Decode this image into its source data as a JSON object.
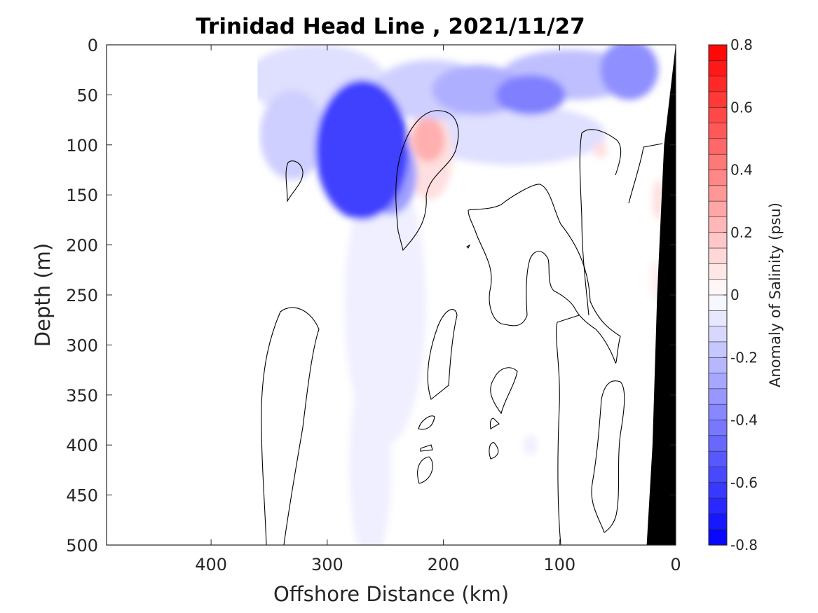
{
  "chart_data": {
    "type": "heatmap",
    "subtype": "filled-contour-section",
    "title": "Trinidad Head Line , 2021/11/27",
    "xlabel": "Offshore Distance (km)",
    "ylabel": "Depth (m)",
    "xlim": [
      490,
      0
    ],
    "ylim": [
      500,
      0
    ],
    "x_reversed": true,
    "y_reversed": true,
    "xticks": [
      400,
      300,
      200,
      100,
      0
    ],
    "xtick_labels": [
      "400",
      "300",
      "200",
      "100",
      "0"
    ],
    "yticks": [
      0,
      50,
      100,
      150,
      200,
      250,
      300,
      350,
      400,
      450,
      500
    ],
    "ytick_labels": [
      "0",
      "50",
      "100",
      "150",
      "200",
      "250",
      "300",
      "350",
      "400",
      "450",
      "500"
    ],
    "colorbar": {
      "label": "Anomaly of Salinity (psu)",
      "range": [
        -0.8,
        0.8
      ],
      "levels_step": 0.05,
      "ticks": [
        0.8,
        0.6,
        0.4,
        0.2,
        0,
        -0.2,
        -0.4,
        -0.6,
        -0.8
      ],
      "tick_labels": [
        "0.8",
        "0.6",
        "0.4",
        "0.2",
        "0",
        "-0.2",
        "-0.4",
        "-0.6",
        "-0.8"
      ],
      "low_color": "#0000ff",
      "mid_color": "#ffffff",
      "high_color": "#ff0000"
    },
    "data_extent_x": [
      360,
      0
    ],
    "bathymetry_color": "#000000",
    "bathymetry": [
      [
        0,
        0
      ],
      [
        10,
        100
      ],
      [
        16,
        250
      ],
      [
        20,
        400
      ],
      [
        25,
        500
      ],
      [
        0,
        500
      ]
    ],
    "features": [
      {
        "x": 270,
        "depth": 105,
        "rx": 40,
        "ry": 70,
        "value": -0.6
      },
      {
        "x": 245,
        "depth": 130,
        "rx": 22,
        "ry": 40,
        "value": -0.3
      },
      {
        "x": 250,
        "depth": 260,
        "rx": 35,
        "ry": 140,
        "value": -0.05
      },
      {
        "x": 263,
        "depth": 420,
        "rx": 18,
        "ry": 100,
        "value": -0.05
      },
      {
        "x": 330,
        "depth": 90,
        "rx": 28,
        "ry": 45,
        "value": -0.15
      },
      {
        "x": 125,
        "depth": 50,
        "rx": 30,
        "ry": 20,
        "value": -0.4
      },
      {
        "x": 170,
        "depth": 45,
        "rx": 40,
        "ry": 25,
        "value": -0.25
      },
      {
        "x": 40,
        "depth": 25,
        "rx": 25,
        "ry": 30,
        "value": -0.35
      },
      {
        "x": 90,
        "depth": 30,
        "rx": 60,
        "ry": 25,
        "value": -0.2
      },
      {
        "x": 140,
        "depth": 90,
        "rx": 80,
        "ry": 30,
        "value": -0.1
      },
      {
        "x": 210,
        "depth": 45,
        "rx": 50,
        "ry": 30,
        "value": -0.15
      },
      {
        "x": 310,
        "depth": 35,
        "rx": 60,
        "ry": 35,
        "value": -0.1
      },
      {
        "x": 213,
        "depth": 95,
        "rx": 14,
        "ry": 22,
        "value": 0.25
      },
      {
        "x": 212,
        "depth": 110,
        "rx": 20,
        "ry": 45,
        "value": 0.1
      },
      {
        "x": 65,
        "depth": 105,
        "rx": 6,
        "ry": 8,
        "value": 0.1
      },
      {
        "x": 15,
        "depth": 155,
        "rx": 5,
        "ry": 20,
        "value": 0.1
      },
      {
        "x": 17,
        "depth": 235,
        "rx": 5,
        "ry": 20,
        "value": 0.05
      },
      {
        "x": 125,
        "depth": 400,
        "rx": 6,
        "ry": 10,
        "value": -0.05
      }
    ]
  }
}
